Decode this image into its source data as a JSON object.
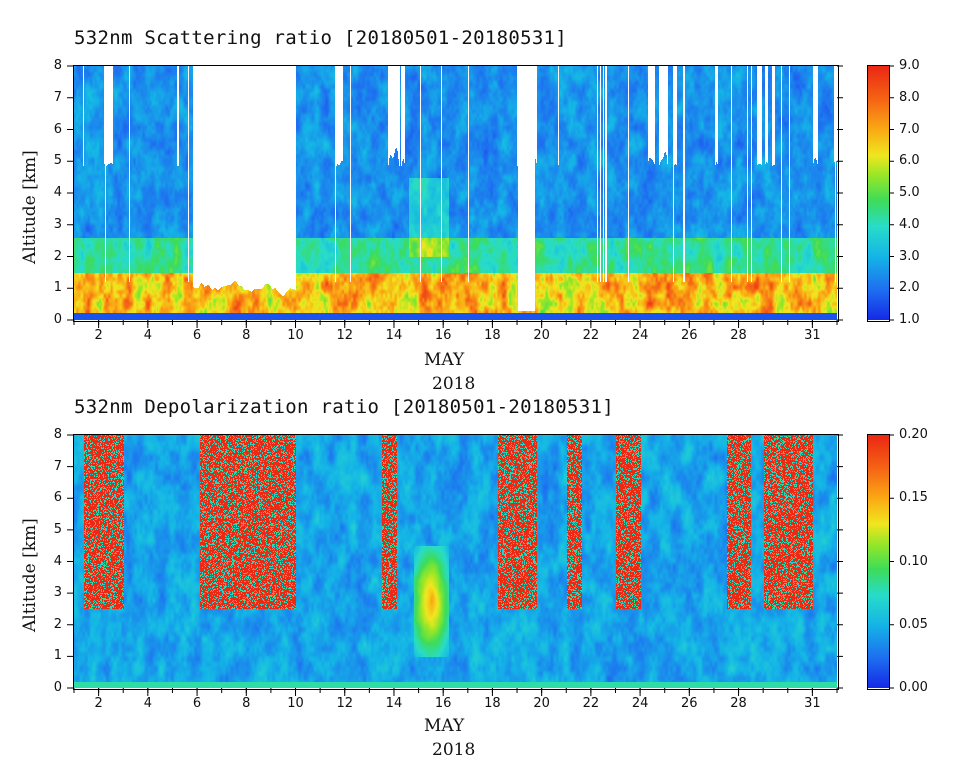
{
  "chart_data": [
    {
      "type": "heatmap",
      "title": "532nm Scattering ratio [20180501-20180531]",
      "xlabel": "MAY",
      "xlabel_year": "2018",
      "ylabel": "Altitude [km]",
      "x_ticks": [
        "2",
        "4",
        "6",
        "8",
        "10",
        "12",
        "14",
        "16",
        "18",
        "20",
        "22",
        "24",
        "26",
        "28",
        "31"
      ],
      "x_tick_days": [
        2,
        4,
        6,
        8,
        10,
        12,
        14,
        16,
        18,
        20,
        22,
        24,
        26,
        28,
        31
      ],
      "xlim": [
        1,
        32
      ],
      "y_ticks": [
        "0",
        "1",
        "2",
        "3",
        "4",
        "5",
        "6",
        "7",
        "8"
      ],
      "ylim": [
        0,
        8
      ],
      "colorbar": {
        "min": 1.0,
        "max": 9.0,
        "ticks": [
          "9.0",
          "8.0",
          "7.0",
          "6.0",
          "5.0",
          "4.0",
          "3.0",
          "2.0",
          "1.0"
        ],
        "colormap": "rainbow"
      },
      "missing_data_days": [
        [
          5.8,
          9.9
        ],
        [
          19.0,
          19.7
        ]
      ],
      "field_note_levels": {
        "boundary_layer_top_km": 1.5,
        "surface_high_values": 8.0,
        "free_troposphere_values": 2.5
      }
    },
    {
      "type": "heatmap",
      "title": "532nm Depolarization ratio [20180501-20180531]",
      "xlabel": "MAY",
      "xlabel_year": "2018",
      "ylabel": "Altitude [km]",
      "x_ticks": [
        "2",
        "4",
        "6",
        "8",
        "10",
        "12",
        "14",
        "16",
        "18",
        "20",
        "22",
        "24",
        "26",
        "28",
        "31"
      ],
      "x_tick_days": [
        2,
        4,
        6,
        8,
        10,
        12,
        14,
        16,
        18,
        20,
        22,
        24,
        26,
        28,
        31
      ],
      "xlim": [
        1,
        32
      ],
      "y_ticks": [
        "0",
        "1",
        "2",
        "3",
        "4",
        "5",
        "6",
        "7",
        "8"
      ],
      "ylim": [
        0,
        8
      ],
      "colorbar": {
        "min": 0.0,
        "max": 0.2,
        "ticks": [
          "0.20",
          "0.15",
          "0.10",
          "0.05",
          "0.00"
        ],
        "colormap": "rainbow"
      },
      "noisy_high_value_days": [
        [
          1.4,
          3.0
        ],
        [
          6.1,
          10.0
        ],
        [
          13.5,
          14.1
        ],
        [
          18.2,
          19.8
        ],
        [
          21.0,
          21.6
        ],
        [
          23.0,
          24.0
        ],
        [
          27.5,
          28.5
        ],
        [
          29.0,
          31.0
        ]
      ],
      "dust_layer": {
        "day_range": [
          14.8,
          16.2
        ],
        "alt_range_km": [
          1.0,
          4.5
        ],
        "value": 0.13
      }
    }
  ]
}
